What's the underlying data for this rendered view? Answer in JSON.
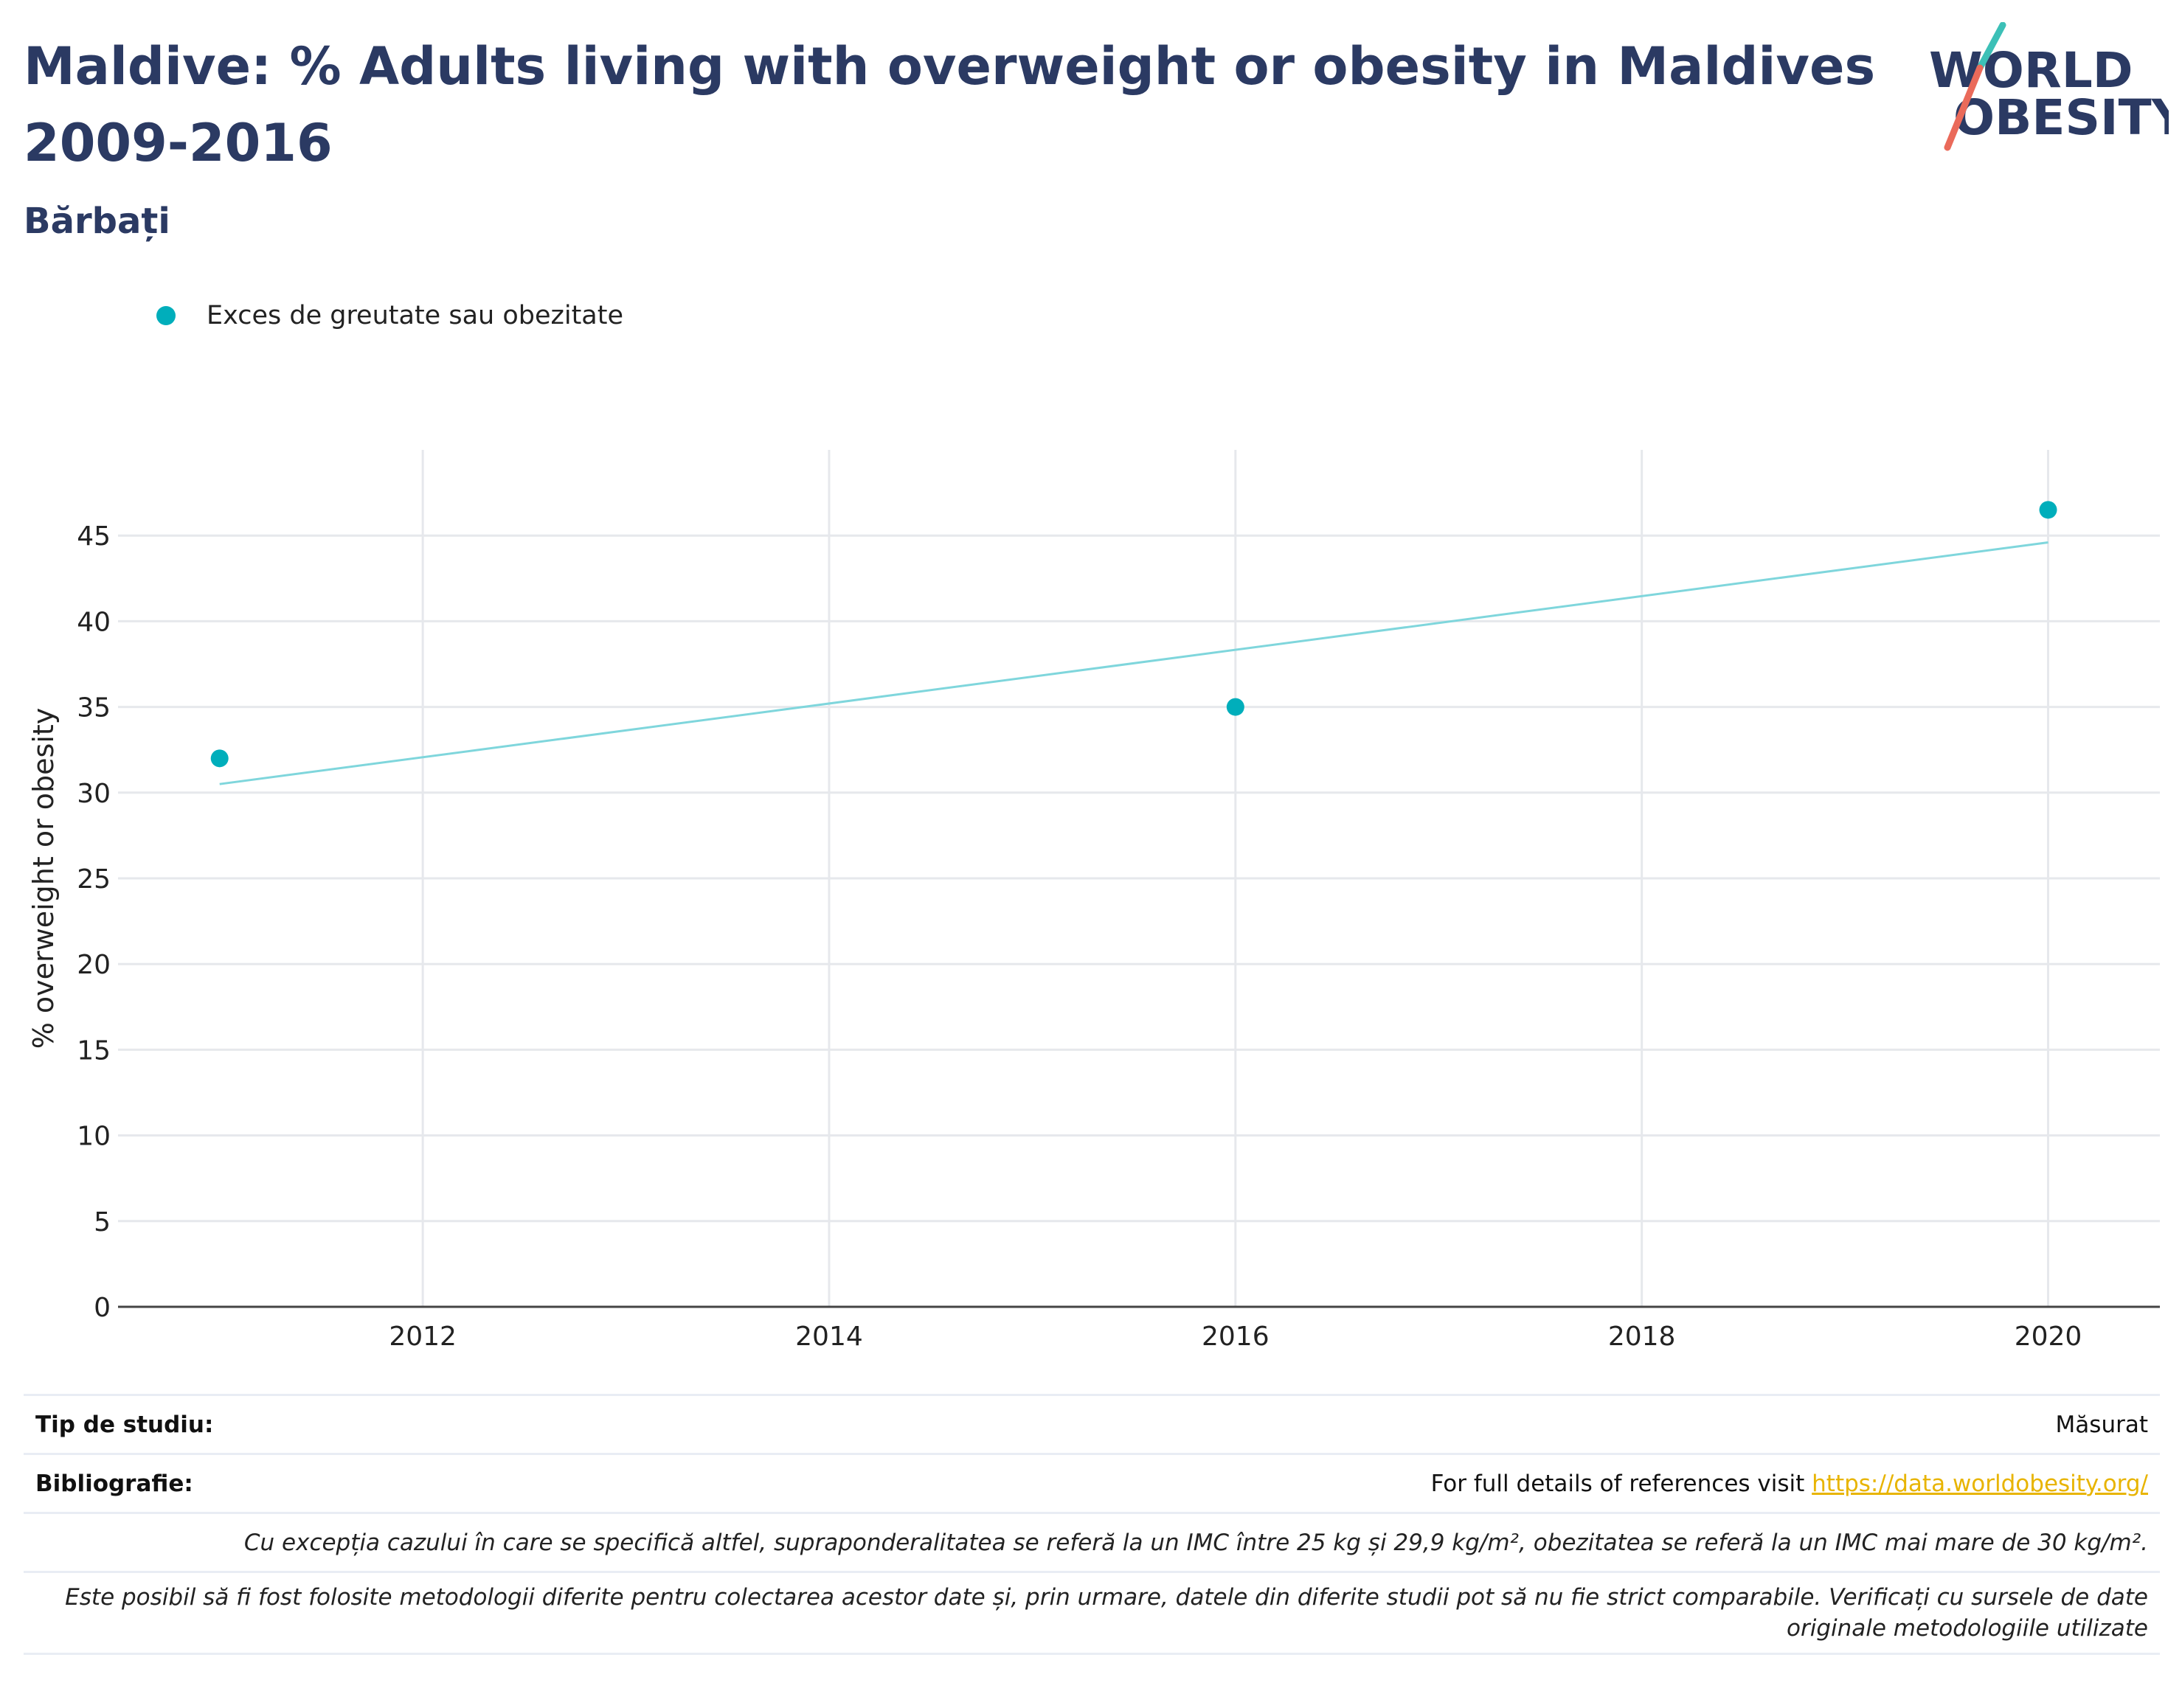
{
  "header": {
    "title": "Maldive: % Adults living with overweight or obesity in Maldives 2009-2016",
    "subtitle": "Bărbați"
  },
  "logo": {
    "line1": "WORLD",
    "line2": "OBESITY",
    "colors": {
      "text": "#2b3a63",
      "slash_top": "#3cc0b7",
      "slash_bottom": "#ea6a5a"
    }
  },
  "legend": {
    "label": "Exces de greutate sau obezitate"
  },
  "colors": {
    "points": "#00aebb",
    "trend": "#7fd6dc",
    "grid": "#e6e8ec",
    "axis": "#444444"
  },
  "chart_data": {
    "type": "scatter",
    "title": "Maldive: % Adults living with overweight or obesity in Maldives 2009-2016",
    "subtitle": "Bărbați",
    "xlabel": "",
    "ylabel": "% overweight or obesity",
    "xlim": [
      2010.5,
      2020.55
    ],
    "ylim": [
      0,
      50
    ],
    "xticks": [
      2012,
      2014,
      2016,
      2018,
      2020
    ],
    "yticks": [
      0,
      5,
      10,
      15,
      20,
      25,
      30,
      35,
      40,
      45
    ],
    "grid": true,
    "legend_position": "top-left",
    "series": [
      {
        "name": "Exces de greutate sau obezitate",
        "x": [
          2011,
          2016,
          2020
        ],
        "y": [
          32,
          35,
          46.5
        ]
      }
    ],
    "trendline": {
      "x": [
        2011,
        2020
      ],
      "y": [
        30.5,
        44.6
      ]
    }
  },
  "info": {
    "study_type_label": "Tip de studiu:",
    "study_type_value": "Măsurat",
    "bibliography_label": "Bibliografie:",
    "bibliography_text": "For full details of references visit ",
    "bibliography_link": "https://data.worldobesity.org/",
    "note1": "Cu excepția cazului în care se specifică altfel, supraponderalitatea se referă la un IMC între 25 kg și 29,9 kg/m², obezitatea se referă la un IMC mai mare de 30 kg/m².",
    "note2": "Este posibil să fi fost folosite metodologii diferite pentru colectarea acestor date și, prin urmare, datele din diferite studii pot să nu fie strict comparabile. Verificați cu sursele de date originale metodologiile utilizate"
  }
}
